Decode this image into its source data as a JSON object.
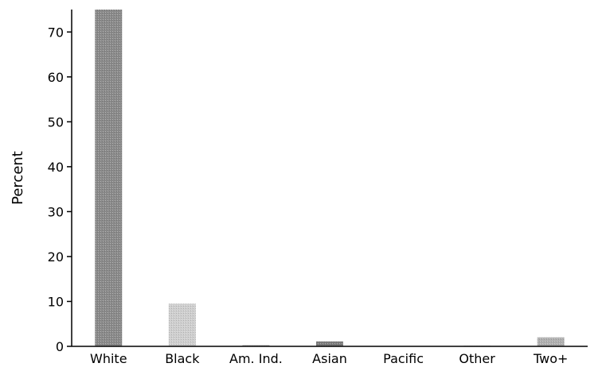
{
  "chart_data": {
    "type": "bar",
    "ylabel": "Percent",
    "ylim": [
      0,
      75
    ],
    "yticks": [
      0,
      10,
      20,
      30,
      40,
      50,
      60,
      70
    ],
    "categories": [
      "White",
      "Black",
      "Am. Ind.",
      "Asian",
      "Pacific",
      "Other",
      "Two+"
    ],
    "values": [
      75,
      9.5,
      0.3,
      1.1,
      0.05,
      0.15,
      2
    ],
    "colors": [
      "#8a8a8a",
      "#cfcfcf",
      "#b5b5b5",
      "#7d7d7d",
      "#bdbdbd",
      "#c6c6c6",
      "#b0b0b0"
    ],
    "grid": false,
    "legend": "none"
  }
}
